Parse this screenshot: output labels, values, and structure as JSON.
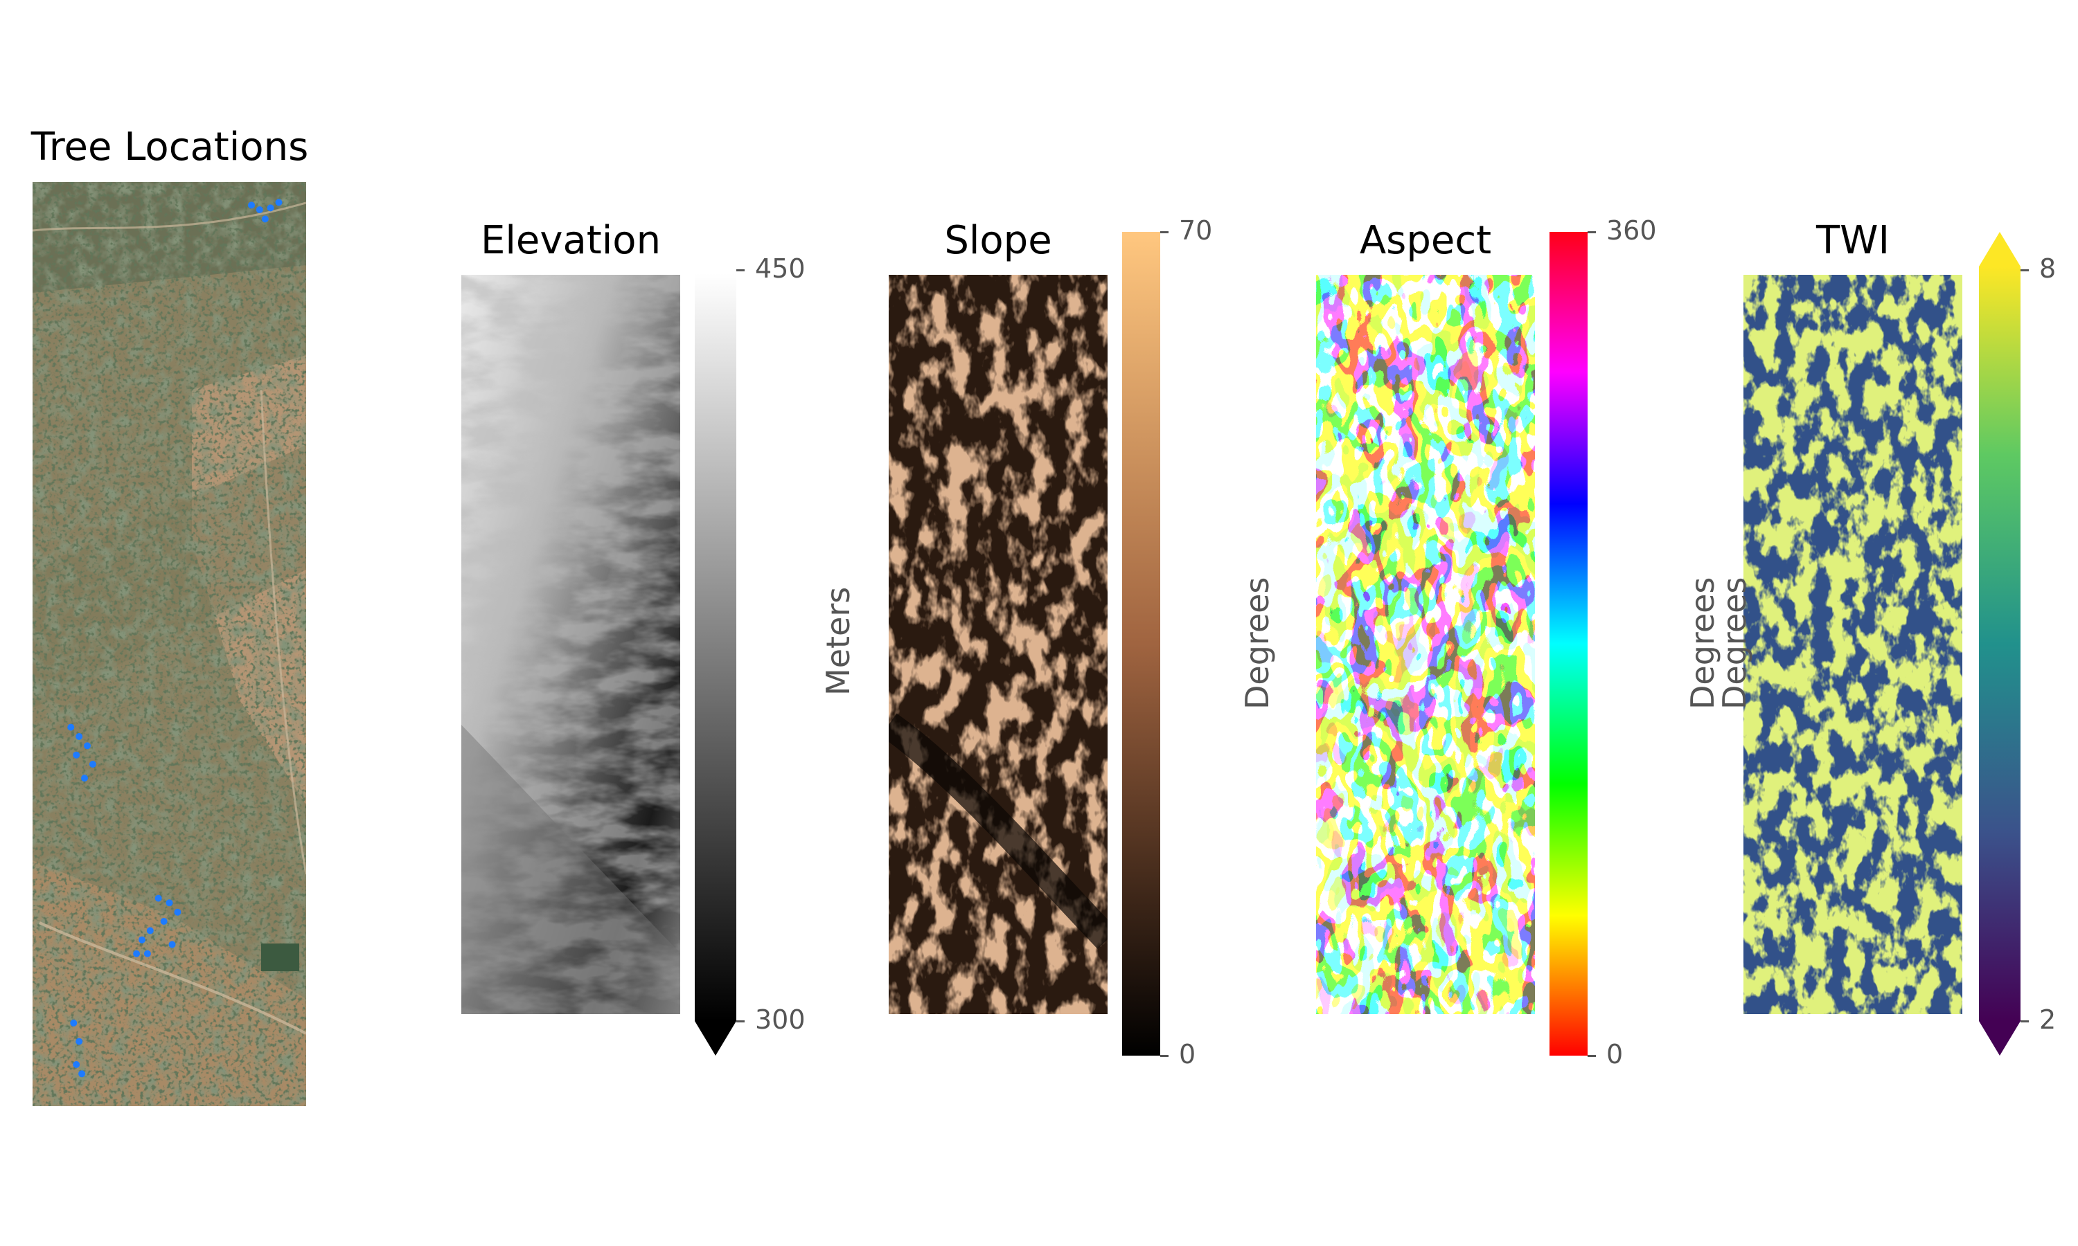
{
  "chart_data": [
    {
      "type": "image",
      "title": "Tree Locations",
      "description_series": "tree points",
      "tree_points": [
        [
          0.8,
          0.025
        ],
        [
          0.83,
          0.03
        ],
        [
          0.87,
          0.028
        ],
        [
          0.85,
          0.04
        ],
        [
          0.9,
          0.022
        ],
        [
          0.14,
          0.59
        ],
        [
          0.17,
          0.6
        ],
        [
          0.2,
          0.61
        ],
        [
          0.16,
          0.62
        ],
        [
          0.22,
          0.63
        ],
        [
          0.19,
          0.645
        ],
        [
          0.46,
          0.775
        ],
        [
          0.5,
          0.78
        ],
        [
          0.53,
          0.79
        ],
        [
          0.48,
          0.8
        ],
        [
          0.43,
          0.81
        ],
        [
          0.51,
          0.825
        ],
        [
          0.4,
          0.82
        ],
        [
          0.38,
          0.835
        ],
        [
          0.42,
          0.835
        ],
        [
          0.15,
          0.91
        ],
        [
          0.17,
          0.93
        ],
        [
          0.16,
          0.955
        ],
        [
          0.18,
          0.965
        ]
      ]
    },
    {
      "type": "heatmap",
      "title": "Elevation",
      "colorbar": {
        "label": "Meters",
        "min": 300,
        "max": 450,
        "ticks": [
          "450",
          "300"
        ],
        "extend": "min",
        "cmap": "gray"
      }
    },
    {
      "type": "heatmap",
      "title": "Slope",
      "colorbar": {
        "label": "Degrees",
        "min": 0,
        "max": 70,
        "ticks": [
          "70",
          "0"
        ],
        "extend": "neither",
        "cmap": "copper"
      }
    },
    {
      "type": "heatmap",
      "title": "Aspect",
      "colorbar": {
        "label": "Degrees",
        "min": 0,
        "max": 360,
        "ticks": [
          "360",
          "0"
        ],
        "extend": "neither",
        "cmap": "hsv"
      }
    },
    {
      "type": "heatmap",
      "title": "TWI",
      "colorbar": {
        "label": "Degrees",
        "min": 2,
        "max": 8,
        "ticks": [
          "8",
          "2"
        ],
        "extend": "both",
        "cmap": "viridis"
      }
    }
  ],
  "colors": {
    "tree_marker": "#1e7bff",
    "gray_low": "#000000",
    "gray_high": "#ffffff",
    "copper_low": "#000000",
    "copper_high": "#ffc77f",
    "viridis_low": "#440154",
    "viridis_high": "#fde725"
  }
}
